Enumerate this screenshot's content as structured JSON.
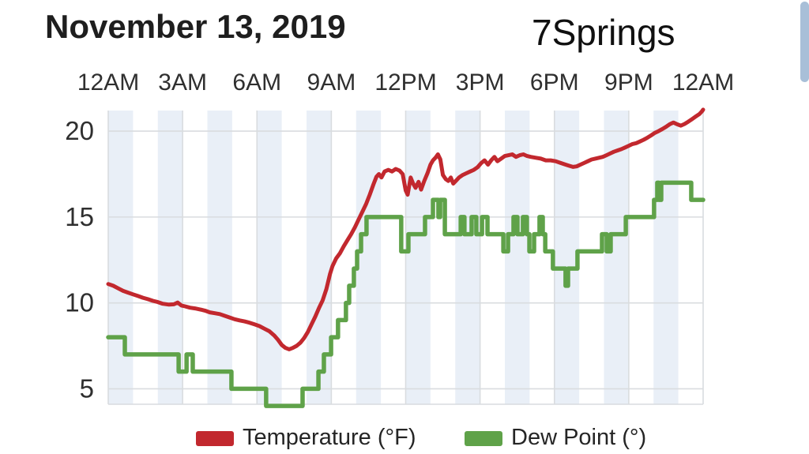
{
  "header": {
    "date_title": "November 13, 2019",
    "station_title": "7Springs"
  },
  "styles": {
    "background": "#ffffff",
    "temperature_color": "#c2282e",
    "dew_point_color": "#5fa249",
    "band_color": "#e9eff7",
    "gridline_color": "#d9dcdf",
    "axis_text_color": "#2f2f2f",
    "title_text_color": "#1e1e1e",
    "scrollbar_color": "#a8bfd8"
  },
  "scrollbar": {
    "visible": true
  },
  "chart_data": {
    "type": "line",
    "x_axis": {
      "tick_labels": [
        "12AM",
        "3AM",
        "6AM",
        "9AM",
        "12PM",
        "3PM",
        "6PM",
        "9PM",
        "12AM"
      ],
      "tick_hours": [
        0,
        3,
        6,
        9,
        12,
        15,
        18,
        21,
        24
      ],
      "hour_range": [
        0,
        24
      ],
      "banding": "alternating 1-hour light blue bands starting at 12AM"
    },
    "y_axis": {
      "tick_values": [
        20,
        15,
        10,
        5
      ],
      "domain": [
        4.1,
        21.2
      ],
      "grid": true
    },
    "legend_position": "bottom",
    "series": [
      {
        "name": "Temperature (°F)",
        "color": "#c2282e",
        "style": "line",
        "points": [
          [
            0,
            11.1
          ],
          [
            0.2,
            11.0
          ],
          [
            0.4,
            10.85
          ],
          [
            0.6,
            10.7
          ],
          [
            0.8,
            10.6
          ],
          [
            1,
            10.5
          ],
          [
            1.2,
            10.4
          ],
          [
            1.4,
            10.3
          ],
          [
            1.6,
            10.22
          ],
          [
            1.8,
            10.12
          ],
          [
            2,
            10.05
          ],
          [
            2.2,
            9.95
          ],
          [
            2.45,
            9.9
          ],
          [
            2.65,
            9.92
          ],
          [
            2.8,
            10.02
          ],
          [
            2.95,
            9.85
          ],
          [
            3.1,
            9.8
          ],
          [
            3.3,
            9.72
          ],
          [
            3.5,
            9.68
          ],
          [
            3.7,
            9.62
          ],
          [
            3.9,
            9.55
          ],
          [
            4.1,
            9.45
          ],
          [
            4.3,
            9.4
          ],
          [
            4.5,
            9.35
          ],
          [
            4.7,
            9.25
          ],
          [
            4.9,
            9.15
          ],
          [
            5.1,
            9.05
          ],
          [
            5.3,
            8.98
          ],
          [
            5.5,
            8.92
          ],
          [
            5.7,
            8.85
          ],
          [
            5.9,
            8.75
          ],
          [
            6.1,
            8.65
          ],
          [
            6.3,
            8.5
          ],
          [
            6.5,
            8.35
          ],
          [
            6.7,
            8.1
          ],
          [
            6.85,
            7.85
          ],
          [
            7,
            7.55
          ],
          [
            7.15,
            7.38
          ],
          [
            7.3,
            7.3
          ],
          [
            7.45,
            7.38
          ],
          [
            7.6,
            7.5
          ],
          [
            7.75,
            7.68
          ],
          [
            7.9,
            7.95
          ],
          [
            8.05,
            8.3
          ],
          [
            8.2,
            8.75
          ],
          [
            8.35,
            9.2
          ],
          [
            8.5,
            9.7
          ],
          [
            8.65,
            10.15
          ],
          [
            8.8,
            10.8
          ],
          [
            8.95,
            11.7
          ],
          [
            9.05,
            12.15
          ],
          [
            9.2,
            12.6
          ],
          [
            9.35,
            12.9
          ],
          [
            9.5,
            13.3
          ],
          [
            9.65,
            13.65
          ],
          [
            9.8,
            14.0
          ],
          [
            9.95,
            14.4
          ],
          [
            10.1,
            14.85
          ],
          [
            10.25,
            15.3
          ],
          [
            10.4,
            15.75
          ],
          [
            10.55,
            16.3
          ],
          [
            10.7,
            16.9
          ],
          [
            10.82,
            17.35
          ],
          [
            10.92,
            17.5
          ],
          [
            11.02,
            17.3
          ],
          [
            11.15,
            17.65
          ],
          [
            11.3,
            17.75
          ],
          [
            11.45,
            17.65
          ],
          [
            11.6,
            17.8
          ],
          [
            11.75,
            17.7
          ],
          [
            11.88,
            17.5
          ],
          [
            12,
            16.55
          ],
          [
            12.08,
            16.3
          ],
          [
            12.2,
            17.3
          ],
          [
            12.3,
            16.95
          ],
          [
            12.4,
            16.7
          ],
          [
            12.52,
            17.05
          ],
          [
            12.62,
            16.6
          ],
          [
            12.75,
            17.1
          ],
          [
            12.88,
            17.55
          ],
          [
            13,
            18.05
          ],
          [
            13.1,
            18.3
          ],
          [
            13.2,
            18.45
          ],
          [
            13.3,
            18.65
          ],
          [
            13.4,
            18.35
          ],
          [
            13.5,
            17.45
          ],
          [
            13.62,
            17.2
          ],
          [
            13.72,
            17.1
          ],
          [
            13.82,
            17.3
          ],
          [
            13.92,
            16.95
          ],
          [
            14.02,
            17.1
          ],
          [
            14.15,
            17.3
          ],
          [
            14.3,
            17.45
          ],
          [
            14.45,
            17.55
          ],
          [
            14.6,
            17.65
          ],
          [
            14.75,
            17.75
          ],
          [
            14.9,
            17.9
          ],
          [
            15.05,
            18.15
          ],
          [
            15.18,
            18.3
          ],
          [
            15.32,
            18.05
          ],
          [
            15.45,
            18.3
          ],
          [
            15.58,
            18.5
          ],
          [
            15.7,
            18.25
          ],
          [
            15.85,
            18.4
          ],
          [
            16,
            18.55
          ],
          [
            16.15,
            18.6
          ],
          [
            16.3,
            18.65
          ],
          [
            16.45,
            18.5
          ],
          [
            16.6,
            18.6
          ],
          [
            16.75,
            18.65
          ],
          [
            16.9,
            18.55
          ],
          [
            17.05,
            18.5
          ],
          [
            17.25,
            18.45
          ],
          [
            17.45,
            18.4
          ],
          [
            17.65,
            18.3
          ],
          [
            17.85,
            18.3
          ],
          [
            18.05,
            18.25
          ],
          [
            18.25,
            18.15
          ],
          [
            18.45,
            18.05
          ],
          [
            18.6,
            17.98
          ],
          [
            18.75,
            17.92
          ],
          [
            18.9,
            17.95
          ],
          [
            19.05,
            18.05
          ],
          [
            19.2,
            18.15
          ],
          [
            19.35,
            18.25
          ],
          [
            19.5,
            18.35
          ],
          [
            19.65,
            18.4
          ],
          [
            19.8,
            18.45
          ],
          [
            19.95,
            18.5
          ],
          [
            20.1,
            18.6
          ],
          [
            20.25,
            18.7
          ],
          [
            20.4,
            18.8
          ],
          [
            20.55,
            18.88
          ],
          [
            20.7,
            18.95
          ],
          [
            20.85,
            19.05
          ],
          [
            21,
            19.15
          ],
          [
            21.15,
            19.25
          ],
          [
            21.3,
            19.3
          ],
          [
            21.45,
            19.4
          ],
          [
            21.6,
            19.5
          ],
          [
            21.75,
            19.62
          ],
          [
            21.9,
            19.75
          ],
          [
            22.05,
            19.9
          ],
          [
            22.2,
            20.0
          ],
          [
            22.35,
            20.12
          ],
          [
            22.5,
            20.25
          ],
          [
            22.65,
            20.4
          ],
          [
            22.8,
            20.5
          ],
          [
            22.95,
            20.4
          ],
          [
            23.1,
            20.32
          ],
          [
            23.25,
            20.42
          ],
          [
            23.4,
            20.55
          ],
          [
            23.55,
            20.7
          ],
          [
            23.7,
            20.85
          ],
          [
            23.85,
            21.0
          ],
          [
            23.95,
            21.15
          ],
          [
            24,
            21.25
          ]
        ]
      },
      {
        "name": "Dew Point (°)",
        "color": "#5fa249",
        "style": "step",
        "points": [
          [
            0,
            8
          ],
          [
            0.67,
            7
          ],
          [
            2.84,
            6
          ],
          [
            3.16,
            7
          ],
          [
            3.41,
            6
          ],
          [
            4.97,
            5
          ],
          [
            6.37,
            4
          ],
          [
            7.84,
            5
          ],
          [
            8.48,
            6
          ],
          [
            8.7,
            7
          ],
          [
            8.99,
            8
          ],
          [
            9.27,
            9
          ],
          [
            9.59,
            10
          ],
          [
            9.72,
            11
          ],
          [
            9.91,
            12
          ],
          [
            10.04,
            13
          ],
          [
            10.2,
            14
          ],
          [
            10.42,
            15
          ],
          [
            11.82,
            13
          ],
          [
            12.11,
            14
          ],
          [
            12.78,
            15
          ],
          [
            13.1,
            16
          ],
          [
            13.32,
            15
          ],
          [
            13.39,
            16
          ],
          [
            13.58,
            14
          ],
          [
            14.22,
            15
          ],
          [
            14.37,
            14
          ],
          [
            14.66,
            15
          ],
          [
            14.85,
            14
          ],
          [
            15.08,
            15
          ],
          [
            15.3,
            14
          ],
          [
            15.94,
            13
          ],
          [
            16.13,
            14
          ],
          [
            16.35,
            15
          ],
          [
            16.51,
            14
          ],
          [
            16.73,
            15
          ],
          [
            16.89,
            14
          ],
          [
            16.99,
            13
          ],
          [
            17.18,
            14
          ],
          [
            17.4,
            15
          ],
          [
            17.53,
            14
          ],
          [
            17.63,
            13
          ],
          [
            17.94,
            12
          ],
          [
            18.45,
            11
          ],
          [
            18.55,
            12
          ],
          [
            18.93,
            13
          ],
          [
            19.92,
            14
          ],
          [
            20.11,
            13
          ],
          [
            20.27,
            14
          ],
          [
            20.88,
            15
          ],
          [
            22.02,
            16
          ],
          [
            22.15,
            17
          ],
          [
            22.22,
            16
          ],
          [
            22.31,
            17
          ],
          [
            23.52,
            16
          ]
        ]
      }
    ]
  }
}
